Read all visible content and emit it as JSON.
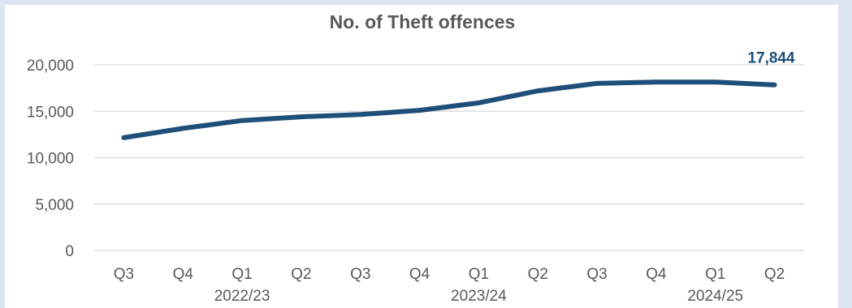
{
  "chart_data": {
    "type": "line",
    "title": "No. of Theft offences",
    "categories": [
      "Q3",
      "Q4",
      "Q1",
      "Q2",
      "Q3",
      "Q4",
      "Q1",
      "Q2",
      "Q3",
      "Q4",
      "Q1",
      "Q2"
    ],
    "year_labels": [
      {
        "label": "2022/23",
        "index": 2
      },
      {
        "label": "2023/24",
        "index": 6
      },
      {
        "label": "2024/25",
        "index": 10
      }
    ],
    "series": [
      {
        "values": [
          12150,
          13150,
          14000,
          14400,
          14650,
          15100,
          15900,
          17200,
          18000,
          18150,
          18150,
          17844
        ]
      }
    ],
    "data_labels": [
      {
        "index": 11,
        "text": "17,844"
      }
    ],
    "yticks": [
      {
        "value": 0,
        "label": "0"
      },
      {
        "value": 5000,
        "label": "5,000"
      },
      {
        "value": 10000,
        "label": "10,000"
      },
      {
        "value": 15000,
        "label": "15,000"
      },
      {
        "value": 20000,
        "label": "20,000"
      }
    ],
    "ylim": [
      0,
      20000
    ],
    "grid": true,
    "colors": {
      "line": "#1f4e79",
      "grid": "#d9d9d9",
      "text": "#595959",
      "background": "#dce6f2"
    }
  }
}
